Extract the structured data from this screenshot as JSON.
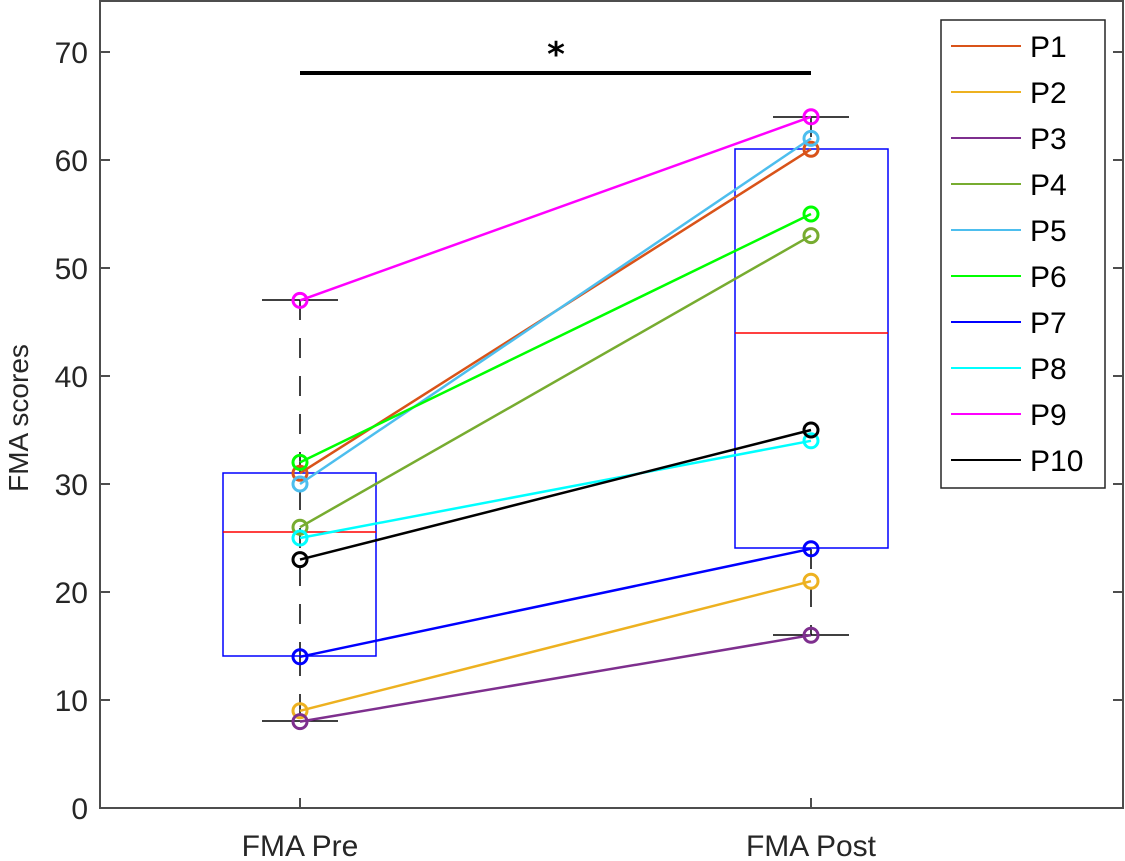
{
  "chart_data": {
    "type": "line",
    "subtype": "paired line plot with box plots",
    "title": "",
    "xlabel": "",
    "ylabel": "FMA scores",
    "ylim": [
      0,
      75
    ],
    "yticks": [
      0,
      10,
      20,
      30,
      40,
      50,
      60,
      70
    ],
    "categories": [
      "FMA Pre",
      "FMA Post"
    ],
    "grid": false,
    "legend_position": "upper right",
    "series": [
      {
        "name": "P1",
        "color": "#D95319",
        "values": [
          31,
          61
        ]
      },
      {
        "name": "P2",
        "color": "#EDB120",
        "values": [
          9,
          21
        ]
      },
      {
        "name": "P3",
        "color": "#7E2F8E",
        "values": [
          8,
          16
        ]
      },
      {
        "name": "P4",
        "color": "#77AC30",
        "values": [
          26,
          53
        ]
      },
      {
        "name": "P5",
        "color": "#4DBEEE",
        "values": [
          30,
          62
        ]
      },
      {
        "name": "P6",
        "color": "#00FF00",
        "values": [
          32,
          55
        ]
      },
      {
        "name": "P7",
        "color": "#0000FF",
        "values": [
          14,
          24
        ]
      },
      {
        "name": "P8",
        "color": "#00FFFF",
        "values": [
          25,
          34
        ]
      },
      {
        "name": "P9",
        "color": "#FF00FF",
        "values": [
          47,
          64
        ]
      },
      {
        "name": "P10",
        "color": "#000000",
        "values": [
          23,
          35
        ]
      }
    ],
    "boxplots": [
      {
        "category": "FMA Pre",
        "whisker_low": 8,
        "q1": 14,
        "median": 25.5,
        "q3": 31,
        "whisker_high": 47
      },
      {
        "category": "FMA Post",
        "whisker_low": 16,
        "q1": 24,
        "median": 44,
        "q3": 61,
        "whisker_high": 64
      }
    ],
    "annotations": [
      {
        "type": "significance-bar",
        "from": "FMA Pre",
        "to": "FMA Post",
        "y": 68,
        "label": "*"
      }
    ]
  },
  "axis": {
    "ylabel": "FMA scores",
    "yticks": [
      "0",
      "10",
      "20",
      "30",
      "40",
      "50",
      "60",
      "70"
    ],
    "xticks": [
      "FMA Pre",
      "FMA Post"
    ]
  },
  "legend": {
    "items": [
      "P1",
      "P2",
      "P3",
      "P4",
      "P5",
      "P6",
      "P7",
      "P8",
      "P9",
      "P10"
    ]
  },
  "significance": {
    "label": "*"
  }
}
